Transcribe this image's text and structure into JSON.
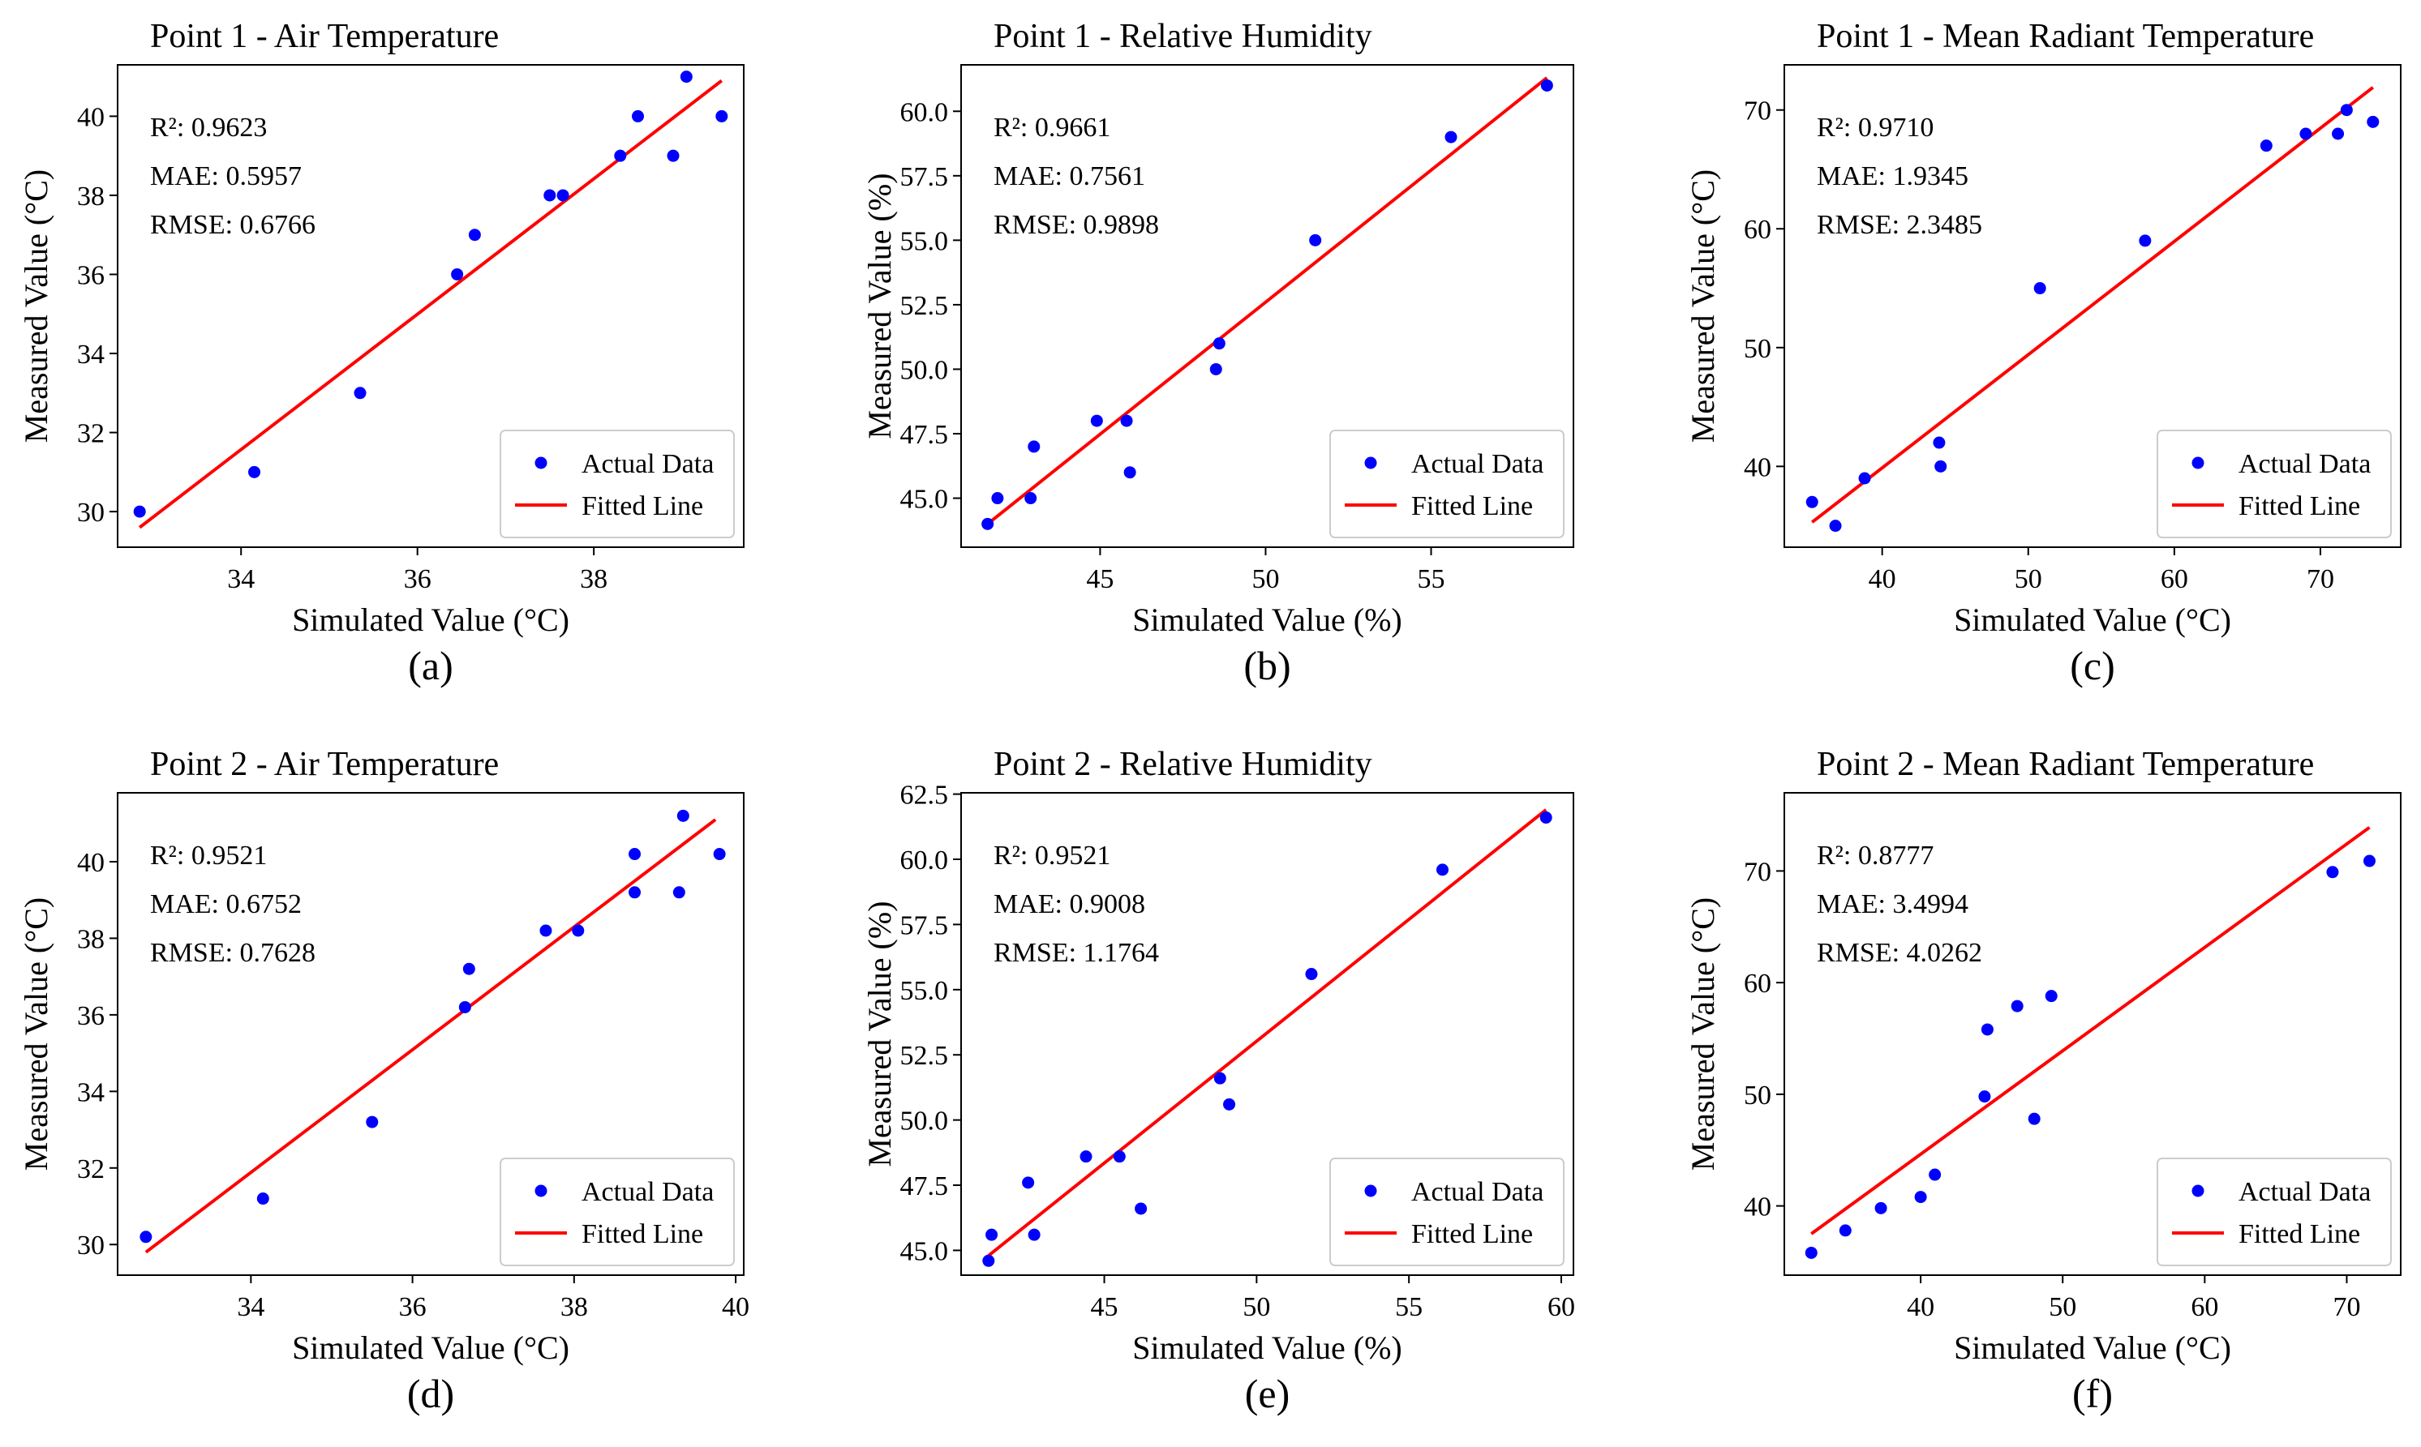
{
  "figure": {
    "colors": {
      "points": "#0000ff",
      "fit_line": "#ff0000",
      "axes": "#000000",
      "legend_border": "#cccccc"
    },
    "legend": {
      "actual": "Actual Data",
      "fitted": "Fitted Line"
    }
  },
  "chart_data": [
    {
      "type": "scatter",
      "panel_label": "(a)",
      "title": "Point 1 - Air Temperature",
      "xlabel": "Simulated Value  (°C)",
      "ylabel": "Measured Value  (°C)",
      "xlim": [
        32.6,
        39.7
      ],
      "ylim": [
        29.1,
        41.3
      ],
      "xticks": [
        34,
        36,
        38
      ],
      "yticks": [
        30,
        32,
        34,
        36,
        38,
        40
      ],
      "ytick_labels": [
        "30",
        "32",
        "34",
        "36",
        "38",
        "40"
      ],
      "stats": {
        "r2": "R²: 0.9623",
        "mae": "MAE: 0.5957",
        "rmse": "RMSE: 0.6766"
      },
      "series": [
        {
          "name": "Actual Data",
          "x": [
            32.85,
            34.15,
            35.35,
            36.45,
            36.65,
            37.5,
            37.65,
            38.3,
            38.5,
            38.9,
            39.05,
            39.45
          ],
          "y": [
            30,
            31,
            33,
            36,
            37,
            38,
            38,
            39,
            40,
            39,
            41,
            40
          ]
        }
      ],
      "fit": {
        "name": "Fitted Line",
        "x": [
          32.85,
          39.45
        ],
        "y": [
          29.6,
          40.9
        ]
      },
      "legend_position": "lower-right"
    },
    {
      "type": "scatter",
      "panel_label": "(b)",
      "title": "Point 1 - Relative Humidity",
      "xlabel": "Simulated Value  (%)",
      "ylabel": "Measured Value  (%)",
      "xlim": [
        40.8,
        59.3
      ],
      "ylim": [
        43.1,
        61.8
      ],
      "xticks": [
        45,
        50,
        55
      ],
      "yticks": [
        45,
        47.5,
        50,
        52.5,
        55,
        57.5,
        60
      ],
      "ytick_labels": [
        "45.0",
        "47.5",
        "50.0",
        "52.5",
        "55.0",
        "57.5",
        "60.0"
      ],
      "stats": {
        "r2": "R²: 0.9661",
        "mae": "MAE: 0.7561",
        "rmse": "RMSE: 0.9898"
      },
      "series": [
        {
          "name": "Actual Data",
          "x": [
            41.6,
            41.9,
            42.9,
            43.0,
            44.9,
            45.8,
            45.9,
            48.5,
            48.6,
            51.5,
            55.6,
            58.5
          ],
          "y": [
            44,
            45,
            45,
            47,
            48,
            48,
            46,
            50,
            51,
            55,
            59,
            61
          ]
        }
      ],
      "fit": {
        "name": "Fitted Line",
        "x": [
          41.6,
          58.5
        ],
        "y": [
          44.0,
          61.3
        ]
      },
      "legend_position": "lower-right"
    },
    {
      "type": "scatter",
      "panel_label": "(c)",
      "title": "Point 1 - Mean Radiant Temperature",
      "xlabel": "Simulated Value  (°C)",
      "ylabel": "Measured Value  (°C)",
      "xlim": [
        33.3,
        75.5
      ],
      "ylim": [
        33.2,
        73.8
      ],
      "xticks": [
        40,
        50,
        60,
        70
      ],
      "yticks": [
        40,
        50,
        60,
        70
      ],
      "ytick_labels": [
        "40",
        "50",
        "60",
        "70"
      ],
      "stats": {
        "r2": "R²: 0.9710",
        "mae": "MAE: 1.9345",
        "rmse": "RMSE: 2.3485"
      },
      "series": [
        {
          "name": "Actual Data",
          "x": [
            35.2,
            36.8,
            38.8,
            43.9,
            44.0,
            50.8,
            58.0,
            66.3,
            69.0,
            71.2,
            71.8,
            73.6
          ],
          "y": [
            37,
            35,
            39,
            42,
            40,
            55,
            59,
            67,
            68,
            68,
            70,
            69
          ]
        }
      ],
      "fit": {
        "name": "Fitted Line",
        "x": [
          35.2,
          73.6
        ],
        "y": [
          35.3,
          71.9
        ]
      },
      "legend_position": "lower-right"
    },
    {
      "type": "scatter",
      "panel_label": "(d)",
      "title": "Point 2 - Air Temperature",
      "xlabel": "Simulated Value  (°C)",
      "ylabel": "Measured Value  (°C)",
      "xlim": [
        32.35,
        40.1
      ],
      "ylim": [
        29.2,
        41.8
      ],
      "xticks": [
        34,
        36,
        38,
        40
      ],
      "yticks": [
        30,
        32,
        34,
        36,
        38,
        40
      ],
      "ytick_labels": [
        "30",
        "32",
        "34",
        "36",
        "38",
        "40"
      ],
      "stats": {
        "r2": "R²: 0.9521",
        "mae": "MAE: 0.6752",
        "rmse": "RMSE: 0.7628"
      },
      "series": [
        {
          "name": "Actual Data",
          "x": [
            32.7,
            34.15,
            35.5,
            36.65,
            36.7,
            37.65,
            38.05,
            38.75,
            38.75,
            39.3,
            39.35,
            39.8
          ],
          "y": [
            30.2,
            31.2,
            33.2,
            36.2,
            37.2,
            38.2,
            38.2,
            40.2,
            39.2,
            39.2,
            41.2,
            40.2
          ]
        }
      ],
      "fit": {
        "name": "Fitted Line",
        "x": [
          32.7,
          39.75
        ],
        "y": [
          29.8,
          41.1
        ]
      },
      "legend_position": "lower-right"
    },
    {
      "type": "scatter",
      "panel_label": "(e)",
      "title": "Point 2 - Relative Humidity",
      "xlabel": "Simulated Value  (%)",
      "ylabel": "Measured Value  (%)",
      "xlim": [
        40.3,
        60.4
      ],
      "ylim": [
        44.05,
        62.55
      ],
      "xticks": [
        45,
        50,
        55,
        60
      ],
      "yticks": [
        45,
        47.5,
        50,
        52.5,
        55,
        57.5,
        60,
        62.5
      ],
      "ytick_labels": [
        "45.0",
        "47.5",
        "50.0",
        "52.5",
        "55.0",
        "57.5",
        "60.0",
        "62.5"
      ],
      "stats": {
        "r2": "R²: 0.9521",
        "mae": "MAE: 0.9008",
        "rmse": "RMSE: 1.1764"
      },
      "series": [
        {
          "name": "Actual Data",
          "x": [
            41.2,
            41.3,
            42.5,
            42.7,
            44.4,
            45.5,
            46.2,
            48.8,
            49.1,
            51.8,
            56.1,
            59.5
          ],
          "y": [
            44.6,
            45.6,
            47.6,
            45.6,
            48.6,
            48.6,
            46.6,
            51.6,
            50.6,
            55.6,
            59.6,
            61.6
          ]
        }
      ],
      "fit": {
        "name": "Fitted Line",
        "x": [
          41.2,
          59.5
        ],
        "y": [
          44.8,
          61.9
        ]
      },
      "legend_position": "lower-right"
    },
    {
      "type": "scatter",
      "panel_label": "(f)",
      "title": "Point 2 - Mean Radiant Temperature",
      "xlabel": "Simulated Value  (°C)",
      "ylabel": "Measured Value  (°C)",
      "xlim": [
        30.4,
        73.8
      ],
      "ylim": [
        33.8,
        77.0
      ],
      "xticks": [
        40,
        50,
        60,
        70
      ],
      "yticks": [
        40,
        50,
        60,
        70
      ],
      "ytick_labels": [
        "40",
        "50",
        "60",
        "70"
      ],
      "stats": {
        "r2": "R²: 0.8777",
        "mae": "MAE: 3.4994",
        "rmse": "RMSE: 4.0262"
      },
      "series": [
        {
          "name": "Actual Data",
          "x": [
            32.3,
            34.7,
            37.2,
            40.0,
            41.0,
            44.5,
            44.7,
            46.8,
            48.0,
            49.2,
            69.0,
            71.6
          ],
          "y": [
            35.8,
            37.8,
            39.8,
            40.8,
            42.8,
            49.8,
            55.8,
            57.9,
            47.8,
            58.8,
            69.9,
            70.9
          ]
        }
      ],
      "fit": {
        "name": "Fitted Line",
        "x": [
          32.3,
          71.6
        ],
        "y": [
          37.5,
          73.9
        ]
      },
      "legend_position": "lower-right"
    }
  ]
}
